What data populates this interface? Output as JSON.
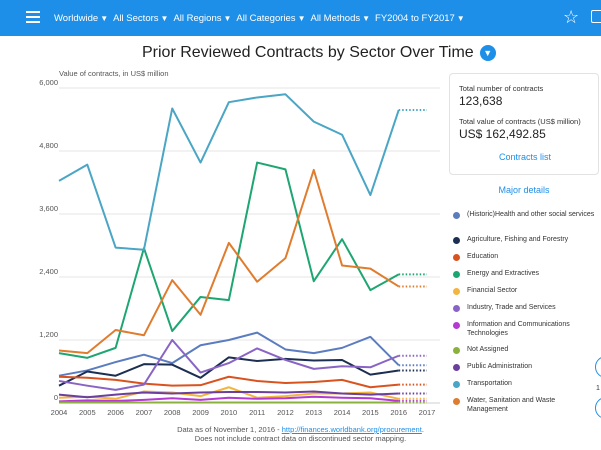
{
  "topbar": {
    "filters": [
      "Worldwide",
      "All Sectors",
      "All Regions",
      "All Categories",
      "All Methods",
      "FY2004 to FY2017"
    ]
  },
  "title": "Prior Reviewed Contracts by Sector Over Time",
  "panel": {
    "total_contracts_label": "Total number of contracts",
    "total_contracts_value": "123,638",
    "total_value_label": "Total value of contracts (US$ million)",
    "total_value_value": "US$ 162,492.85",
    "contracts_list_link": "Contracts list"
  },
  "major_details": "Major details",
  "footnote": {
    "line1_prefix": "Data as of November 1, 2016 - ",
    "line1_link": "http://finances.worldbank.org/procurement",
    "line1_suffix": ".",
    "line2": "Does not include contract data on discontinued sector mapping."
  },
  "right_edge_text": "1",
  "chart_data": {
    "type": "line",
    "ylabel": "Value of contracts, in US$ million",
    "x": [
      2004,
      2005,
      2006,
      2007,
      2008,
      2009,
      2010,
      2011,
      2012,
      2013,
      2014,
      2015,
      2016
    ],
    "xticks": [
      "2004",
      "2005",
      "2006",
      "2007",
      "2008",
      "2009",
      "2010",
      "2011",
      "2012",
      "2013",
      "2014",
      "2015",
      "2016",
      "2017"
    ],
    "xlim": [
      2004,
      2017
    ],
    "yticks": [
      "0",
      "1,200",
      "2,400",
      "3,600",
      "4,800",
      "6,000"
    ],
    "ylim": [
      0,
      6000
    ],
    "projection": "dotted extension from 2016 to 2017",
    "grid": "horizontal",
    "series": [
      {
        "name": "(Historic)Health and other social services",
        "color": "#5b7cbf",
        "values": [
          520,
          620,
          780,
          920,
          760,
          1100,
          1200,
          1340,
          1020,
          950,
          1050,
          1260,
          720
        ]
      },
      {
        "name": "Agriculture, Fishing and Forestry",
        "color": "#1c2f52",
        "values": [
          330,
          600,
          520,
          740,
          730,
          480,
          870,
          800,
          840,
          810,
          820,
          540,
          620
        ]
      },
      {
        "name": "Education",
        "color": "#d9531e",
        "values": [
          500,
          480,
          440,
          370,
          330,
          340,
          500,
          420,
          380,
          400,
          440,
          300,
          350
        ]
      },
      {
        "name": "Energy and Extractives",
        "color": "#1ea672",
        "values": [
          950,
          860,
          1050,
          2950,
          1370,
          2020,
          1960,
          4580,
          4450,
          2320,
          3120,
          2150,
          2450
        ]
      },
      {
        "name": "Financial Sector",
        "color": "#f4b53f",
        "values": [
          100,
          120,
          80,
          220,
          200,
          130,
          300,
          100,
          130,
          180,
          180,
          200,
          80
        ]
      },
      {
        "name": "Industry, Trade and Services",
        "color": "#8a64c4",
        "values": [
          420,
          330,
          250,
          350,
          1200,
          580,
          760,
          1040,
          820,
          650,
          700,
          680,
          900
        ]
      },
      {
        "name": "Information and Communications Technologies",
        "color": "#b43ad3",
        "values": [
          30,
          50,
          40,
          60,
          90,
          60,
          100,
          80,
          90,
          120,
          100,
          90,
          40
        ]
      },
      {
        "name": "Not Assigned",
        "color": "#8ab13d",
        "values": [
          10,
          10,
          10,
          10,
          10,
          10,
          10,
          10,
          10,
          10,
          10,
          10,
          10
        ]
      },
      {
        "name": "Public Administration",
        "color": "#6a3f9e",
        "values": [
          160,
          110,
          160,
          200,
          180,
          200,
          210,
          210,
          200,
          220,
          180,
          160,
          180
        ]
      },
      {
        "name": "Transportation",
        "color": "#4aa6c4",
        "values": [
          4230,
          4540,
          2960,
          2920,
          5610,
          4580,
          5730,
          5820,
          5880,
          5360,
          5110,
          3960,
          5580
        ]
      },
      {
        "name": "Water, Sanitation and Waste Management",
        "color": "#e07c2e",
        "values": [
          1000,
          950,
          1390,
          1290,
          2340,
          1680,
          3050,
          2310,
          2760,
          4440,
          2620,
          2560,
          2220
        ]
      }
    ]
  },
  "colors": {
    "topbar": "#1d8fe8",
    "accent": "#1d8fe8"
  }
}
